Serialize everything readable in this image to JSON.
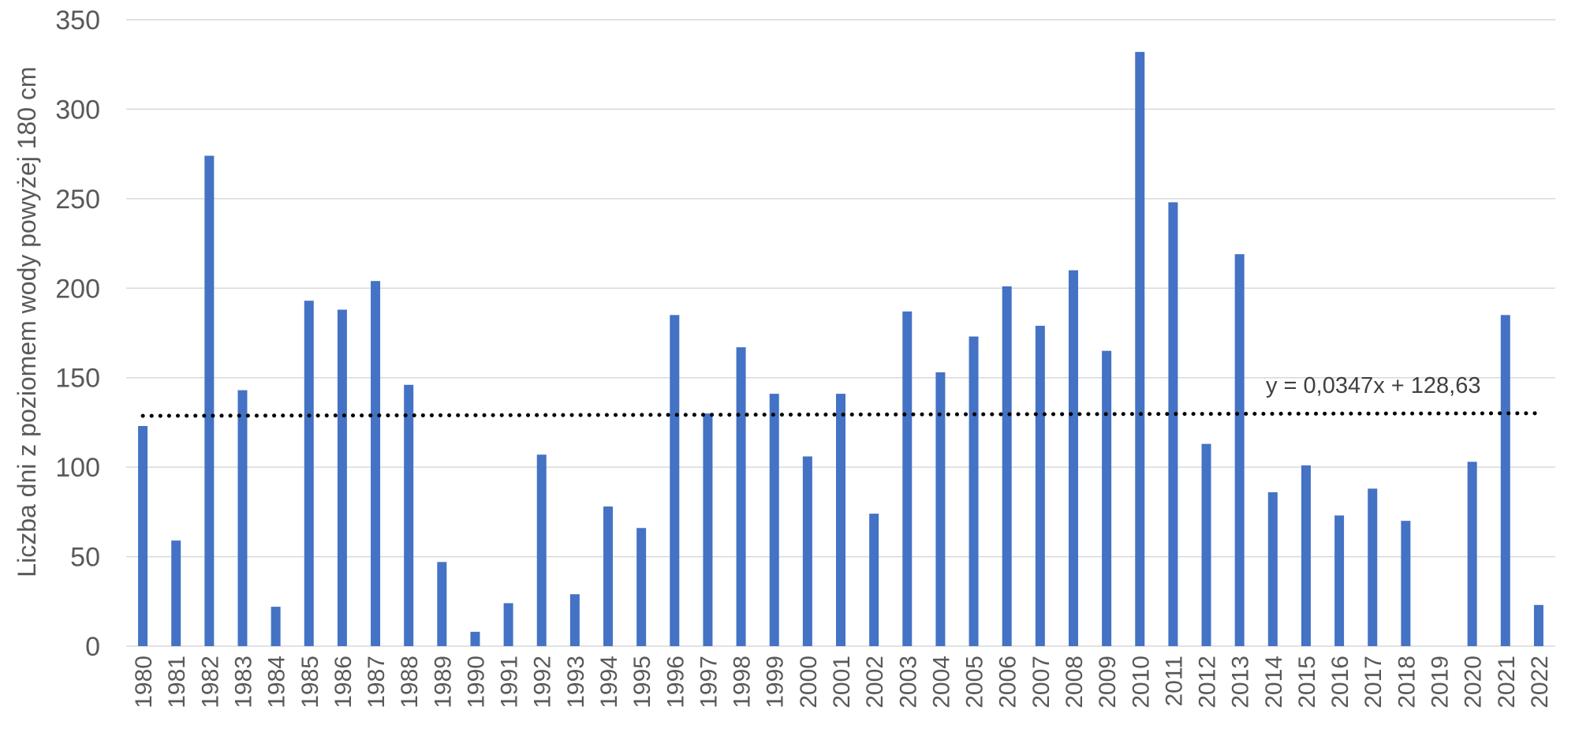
{
  "chart_data": {
    "type": "bar",
    "title": "",
    "xlabel": "",
    "ylabel": "Liczba dni z poziomem wody powyżej 180 cm",
    "ylim": [
      0,
      350
    ],
    "yticks": [
      0,
      50,
      100,
      150,
      200,
      250,
      300,
      350
    ],
    "grid": true,
    "bar_color": "#4472C4",
    "categories": [
      "1980",
      "1981",
      "1982",
      "1983",
      "1984",
      "1985",
      "1986",
      "1987",
      "1988",
      "1989",
      "1990",
      "1991",
      "1992",
      "1993",
      "1994",
      "1995",
      "1996",
      "1997",
      "1998",
      "1999",
      "2000",
      "2001",
      "2002",
      "2003",
      "2004",
      "2005",
      "2006",
      "2007",
      "2008",
      "2009",
      "2010",
      "2011",
      "2012",
      "2013",
      "2014",
      "2015",
      "2016",
      "2017",
      "2018",
      "2019",
      "2020",
      "2021",
      "2022"
    ],
    "values": [
      123,
      59,
      274,
      143,
      22,
      193,
      188,
      204,
      146,
      47,
      8,
      24,
      107,
      29,
      78,
      66,
      185,
      130,
      167,
      141,
      106,
      141,
      74,
      187,
      153,
      173,
      201,
      179,
      210,
      165,
      332,
      248,
      113,
      219,
      86,
      101,
      73,
      88,
      70,
      0,
      103,
      185,
      23
    ],
    "trendline": {
      "type": "linear",
      "style": "dotted",
      "color": "#000000",
      "slope": 0.0347,
      "intercept": 128.63,
      "equation_label": "y = 0,0347x + 128,63"
    }
  }
}
